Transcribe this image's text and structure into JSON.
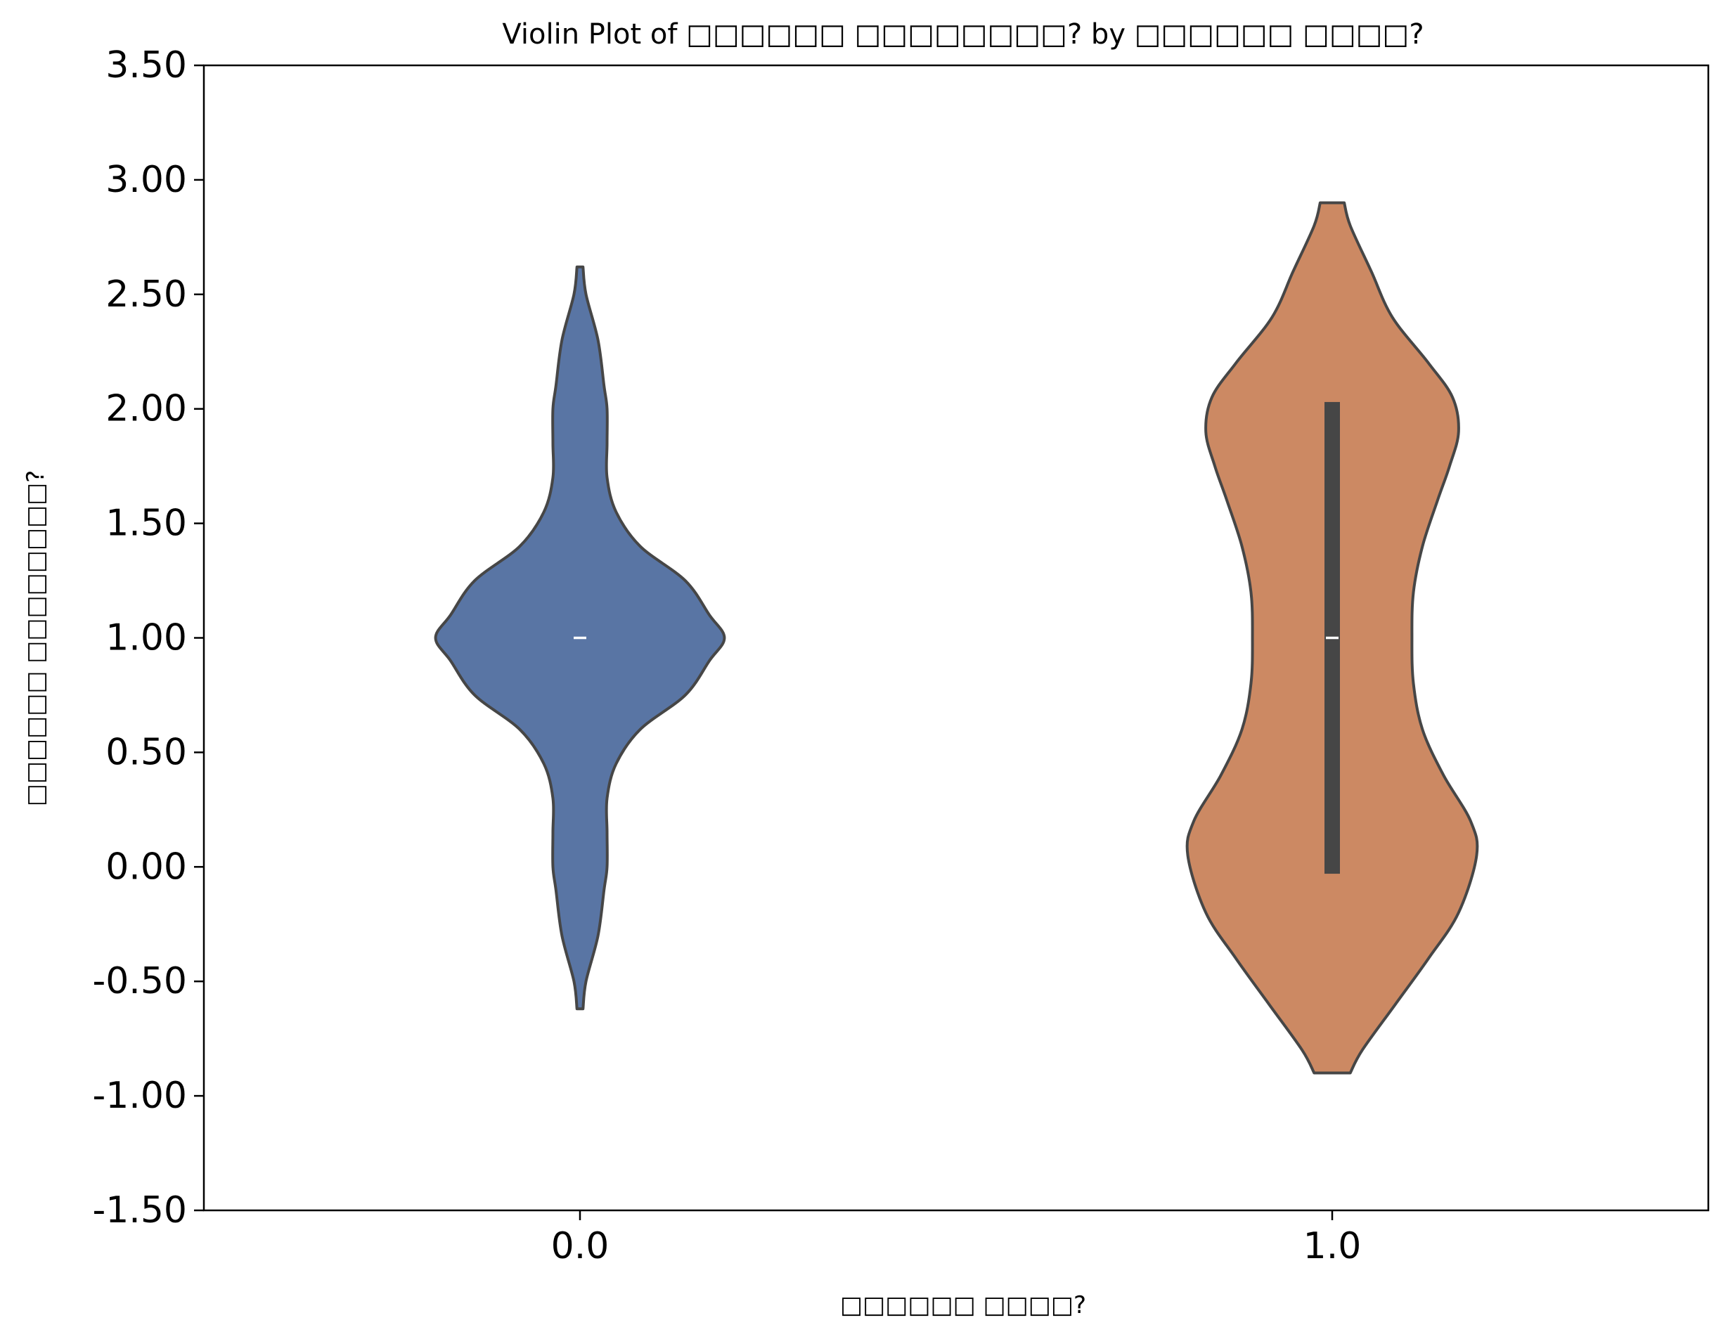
{
  "chart_data": {
    "type": "violin",
    "title": "Violin Plot of □□□□□□ □□□□□□□□? by □□□□□□ □□□□?",
    "xlabel": "□□□□□□ □□□□?",
    "ylabel": "□□□□□□ □□□□□□□□?",
    "categories": [
      "0.0",
      "1.0"
    ],
    "ylim": [
      -1.5,
      3.5
    ],
    "yticks": [
      "-1.50",
      "-1.00",
      "-0.50",
      "0.00",
      "0.50",
      "1.00",
      "1.50",
      "2.00",
      "2.50",
      "3.00",
      "3.50"
    ],
    "grid": false,
    "violins": [
      {
        "category": "0.0",
        "color": "#5975a4",
        "min": -0.62,
        "max": 2.62,
        "median": 1.0,
        "q1": 1.0,
        "q3": 1.0,
        "density": [
          [
            -0.62,
            0.01
          ],
          [
            -0.5,
            0.02
          ],
          [
            -0.3,
            0.06
          ],
          [
            -0.1,
            0.08
          ],
          [
            0.0,
            0.09
          ],
          [
            0.15,
            0.09
          ],
          [
            0.3,
            0.09
          ],
          [
            0.45,
            0.12
          ],
          [
            0.6,
            0.2
          ],
          [
            0.75,
            0.35
          ],
          [
            0.9,
            0.43
          ],
          [
            1.0,
            0.48
          ],
          [
            1.1,
            0.43
          ],
          [
            1.25,
            0.35
          ],
          [
            1.4,
            0.2
          ],
          [
            1.55,
            0.12
          ],
          [
            1.7,
            0.09
          ],
          [
            1.85,
            0.09
          ],
          [
            2.0,
            0.09
          ],
          [
            2.1,
            0.08
          ],
          [
            2.3,
            0.06
          ],
          [
            2.5,
            0.02
          ],
          [
            2.62,
            0.01
          ]
        ]
      },
      {
        "category": "1.0",
        "color": "#cc8963",
        "min": -0.9,
        "max": 2.9,
        "median": 1.0,
        "q1": -0.03,
        "q3": 2.03,
        "density": [
          [
            -0.9,
            0.06
          ],
          [
            -0.8,
            0.1
          ],
          [
            -0.6,
            0.21
          ],
          [
            -0.4,
            0.32
          ],
          [
            -0.2,
            0.42
          ],
          [
            0.05,
            0.48
          ],
          [
            0.2,
            0.46
          ],
          [
            0.4,
            0.37
          ],
          [
            0.6,
            0.3
          ],
          [
            0.8,
            0.27
          ],
          [
            1.0,
            0.265
          ],
          [
            1.2,
            0.27
          ],
          [
            1.4,
            0.3
          ],
          [
            1.6,
            0.35
          ],
          [
            1.75,
            0.39
          ],
          [
            1.9,
            0.42
          ],
          [
            2.05,
            0.4
          ],
          [
            2.2,
            0.32
          ],
          [
            2.4,
            0.2
          ],
          [
            2.6,
            0.13
          ],
          [
            2.8,
            0.06
          ],
          [
            2.9,
            0.04
          ]
        ]
      }
    ]
  }
}
